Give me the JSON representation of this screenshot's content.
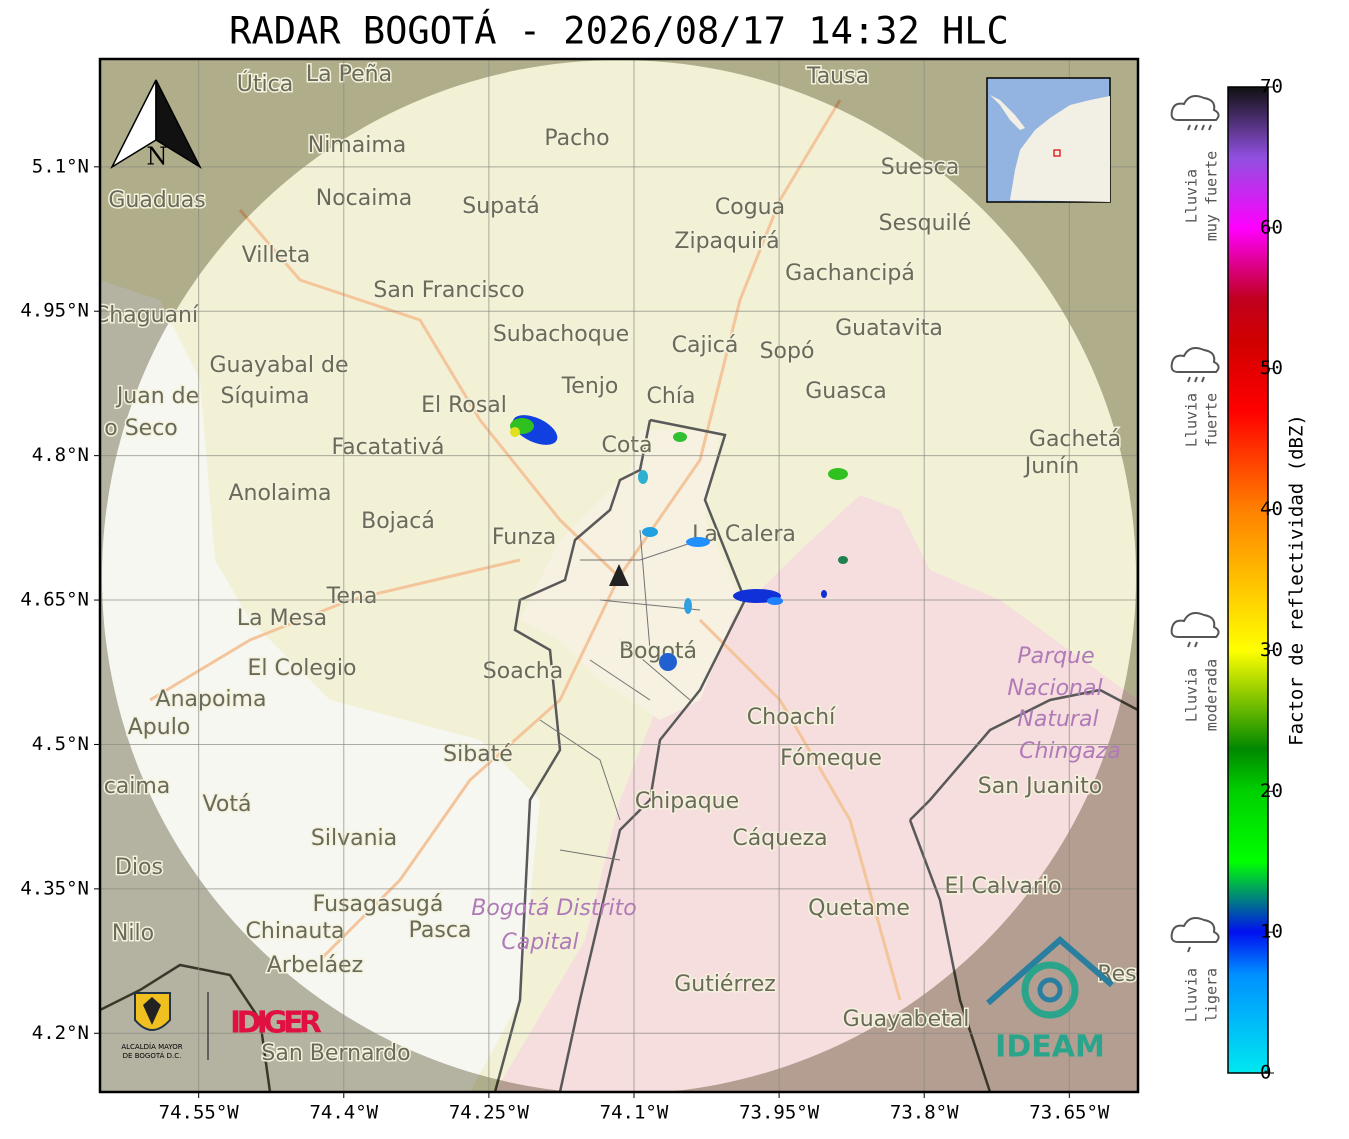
{
  "title": "RADAR BOGOTÁ - 2026/08/17 14:32 HLC",
  "map": {
    "lon_range": [
      -74.652,
      -73.579
    ],
    "lat_range": [
      4.139,
      5.212
    ],
    "lat_ticks": [
      {
        "value": 5.1,
        "label": "5.1°N"
      },
      {
        "value": 4.95,
        "label": "4.95°N"
      },
      {
        "value": 4.8,
        "label": "4.8°N"
      },
      {
        "value": 4.65,
        "label": "4.65°N"
      },
      {
        "value": 4.5,
        "label": "4.5°N"
      },
      {
        "value": 4.35,
        "label": "4.35°N"
      },
      {
        "value": 4.2,
        "label": "4.2°N"
      }
    ],
    "lon_ticks": [
      {
        "value": -74.55,
        "label": "74.55°W"
      },
      {
        "value": -74.4,
        "label": "74.4°W"
      },
      {
        "value": -74.25,
        "label": "74.25°W"
      },
      {
        "value": -74.1,
        "label": "74.1°W"
      },
      {
        "value": -73.95,
        "label": "73.95°W"
      },
      {
        "value": -73.8,
        "label": "73.8°W"
      },
      {
        "value": -73.65,
        "label": "73.65°W"
      }
    ],
    "north": "N",
    "places": [
      "Útica",
      "La Peña",
      "Tausa",
      "Pacho",
      "Nimaima",
      "Suesca",
      "Guaduas",
      "Nocaima",
      "Supatá",
      "Cogua",
      "Sesquilé",
      "Zipaquirá",
      "Villeta",
      "Gachancipá",
      "San Francisco",
      "Chaguaní",
      "Guatavita",
      "Subachoque",
      "Cajicá",
      "Sopó",
      "Guayabal de",
      "Síquima",
      "Tenjo",
      "Guasca",
      "Juan de",
      "Chía",
      "El Rosal",
      "o Seco",
      "Cota",
      "Gachetá",
      "Facatativá",
      "Junín",
      "Anolaima",
      "Bojacá",
      "Funza",
      "La Calera",
      "Tena",
      "La Mesa",
      "Bogotá",
      "Parque",
      "El Colegio",
      "Soacha",
      "Nacional",
      "Anapoima",
      "Choachí",
      "Natural",
      "Apulo",
      "Chingaza",
      "Sibaté",
      "Fómeque",
      "San Juanito",
      "caima",
      "Votá",
      "Chipaque",
      "Silvania",
      "Cáqueza",
      "Dios",
      "El Calvario",
      "Fusagasugá",
      "Quetame",
      "Bogotá Distrito",
      "Nilo",
      "Chinauta",
      "Pasca",
      "Capital",
      "Arbeláez",
      "Res",
      "Gutiérrez",
      "Guayabetal",
      "San Bernardo"
    ]
  },
  "colorbar": {
    "label": "Factor de reflectividad (dBZ)",
    "range": [
      0,
      70
    ],
    "ticks": [
      0,
      10,
      20,
      30,
      40,
      50,
      60,
      70
    ],
    "stops": [
      {
        "value": 0,
        "color": "#00e8f0"
      },
      {
        "value": 7,
        "color": "#0090ff"
      },
      {
        "value": 10,
        "color": "#0010f0"
      },
      {
        "value": 15,
        "color": "#00ff00"
      },
      {
        "value": 20,
        "color": "#00d000"
      },
      {
        "value": 23,
        "color": "#008800"
      },
      {
        "value": 30,
        "color": "#ffff00"
      },
      {
        "value": 35,
        "color": "#ffc000"
      },
      {
        "value": 40,
        "color": "#ff8000"
      },
      {
        "value": 47,
        "color": "#ff0000"
      },
      {
        "value": 52,
        "color": "#d00000"
      },
      {
        "value": 55,
        "color": "#c00020"
      },
      {
        "value": 60,
        "color": "#ff00ff"
      },
      {
        "value": 65,
        "color": "#9050e0"
      },
      {
        "value": 70,
        "color": "#101010"
      }
    ]
  },
  "rain_legend": [
    [
      "Lluvia",
      "muy fuerte"
    ],
    [
      "Lluvia",
      "fuerte"
    ],
    [
      "Lluvia",
      "moderada"
    ],
    [
      "Lluvia",
      "ligera"
    ]
  ],
  "logos": {
    "alcaldia": [
      "ALCALDÍA MAYOR",
      "DE BOGOTÁ D.C."
    ],
    "idiger": "IDIGER",
    "ideam": "IDEAM"
  }
}
